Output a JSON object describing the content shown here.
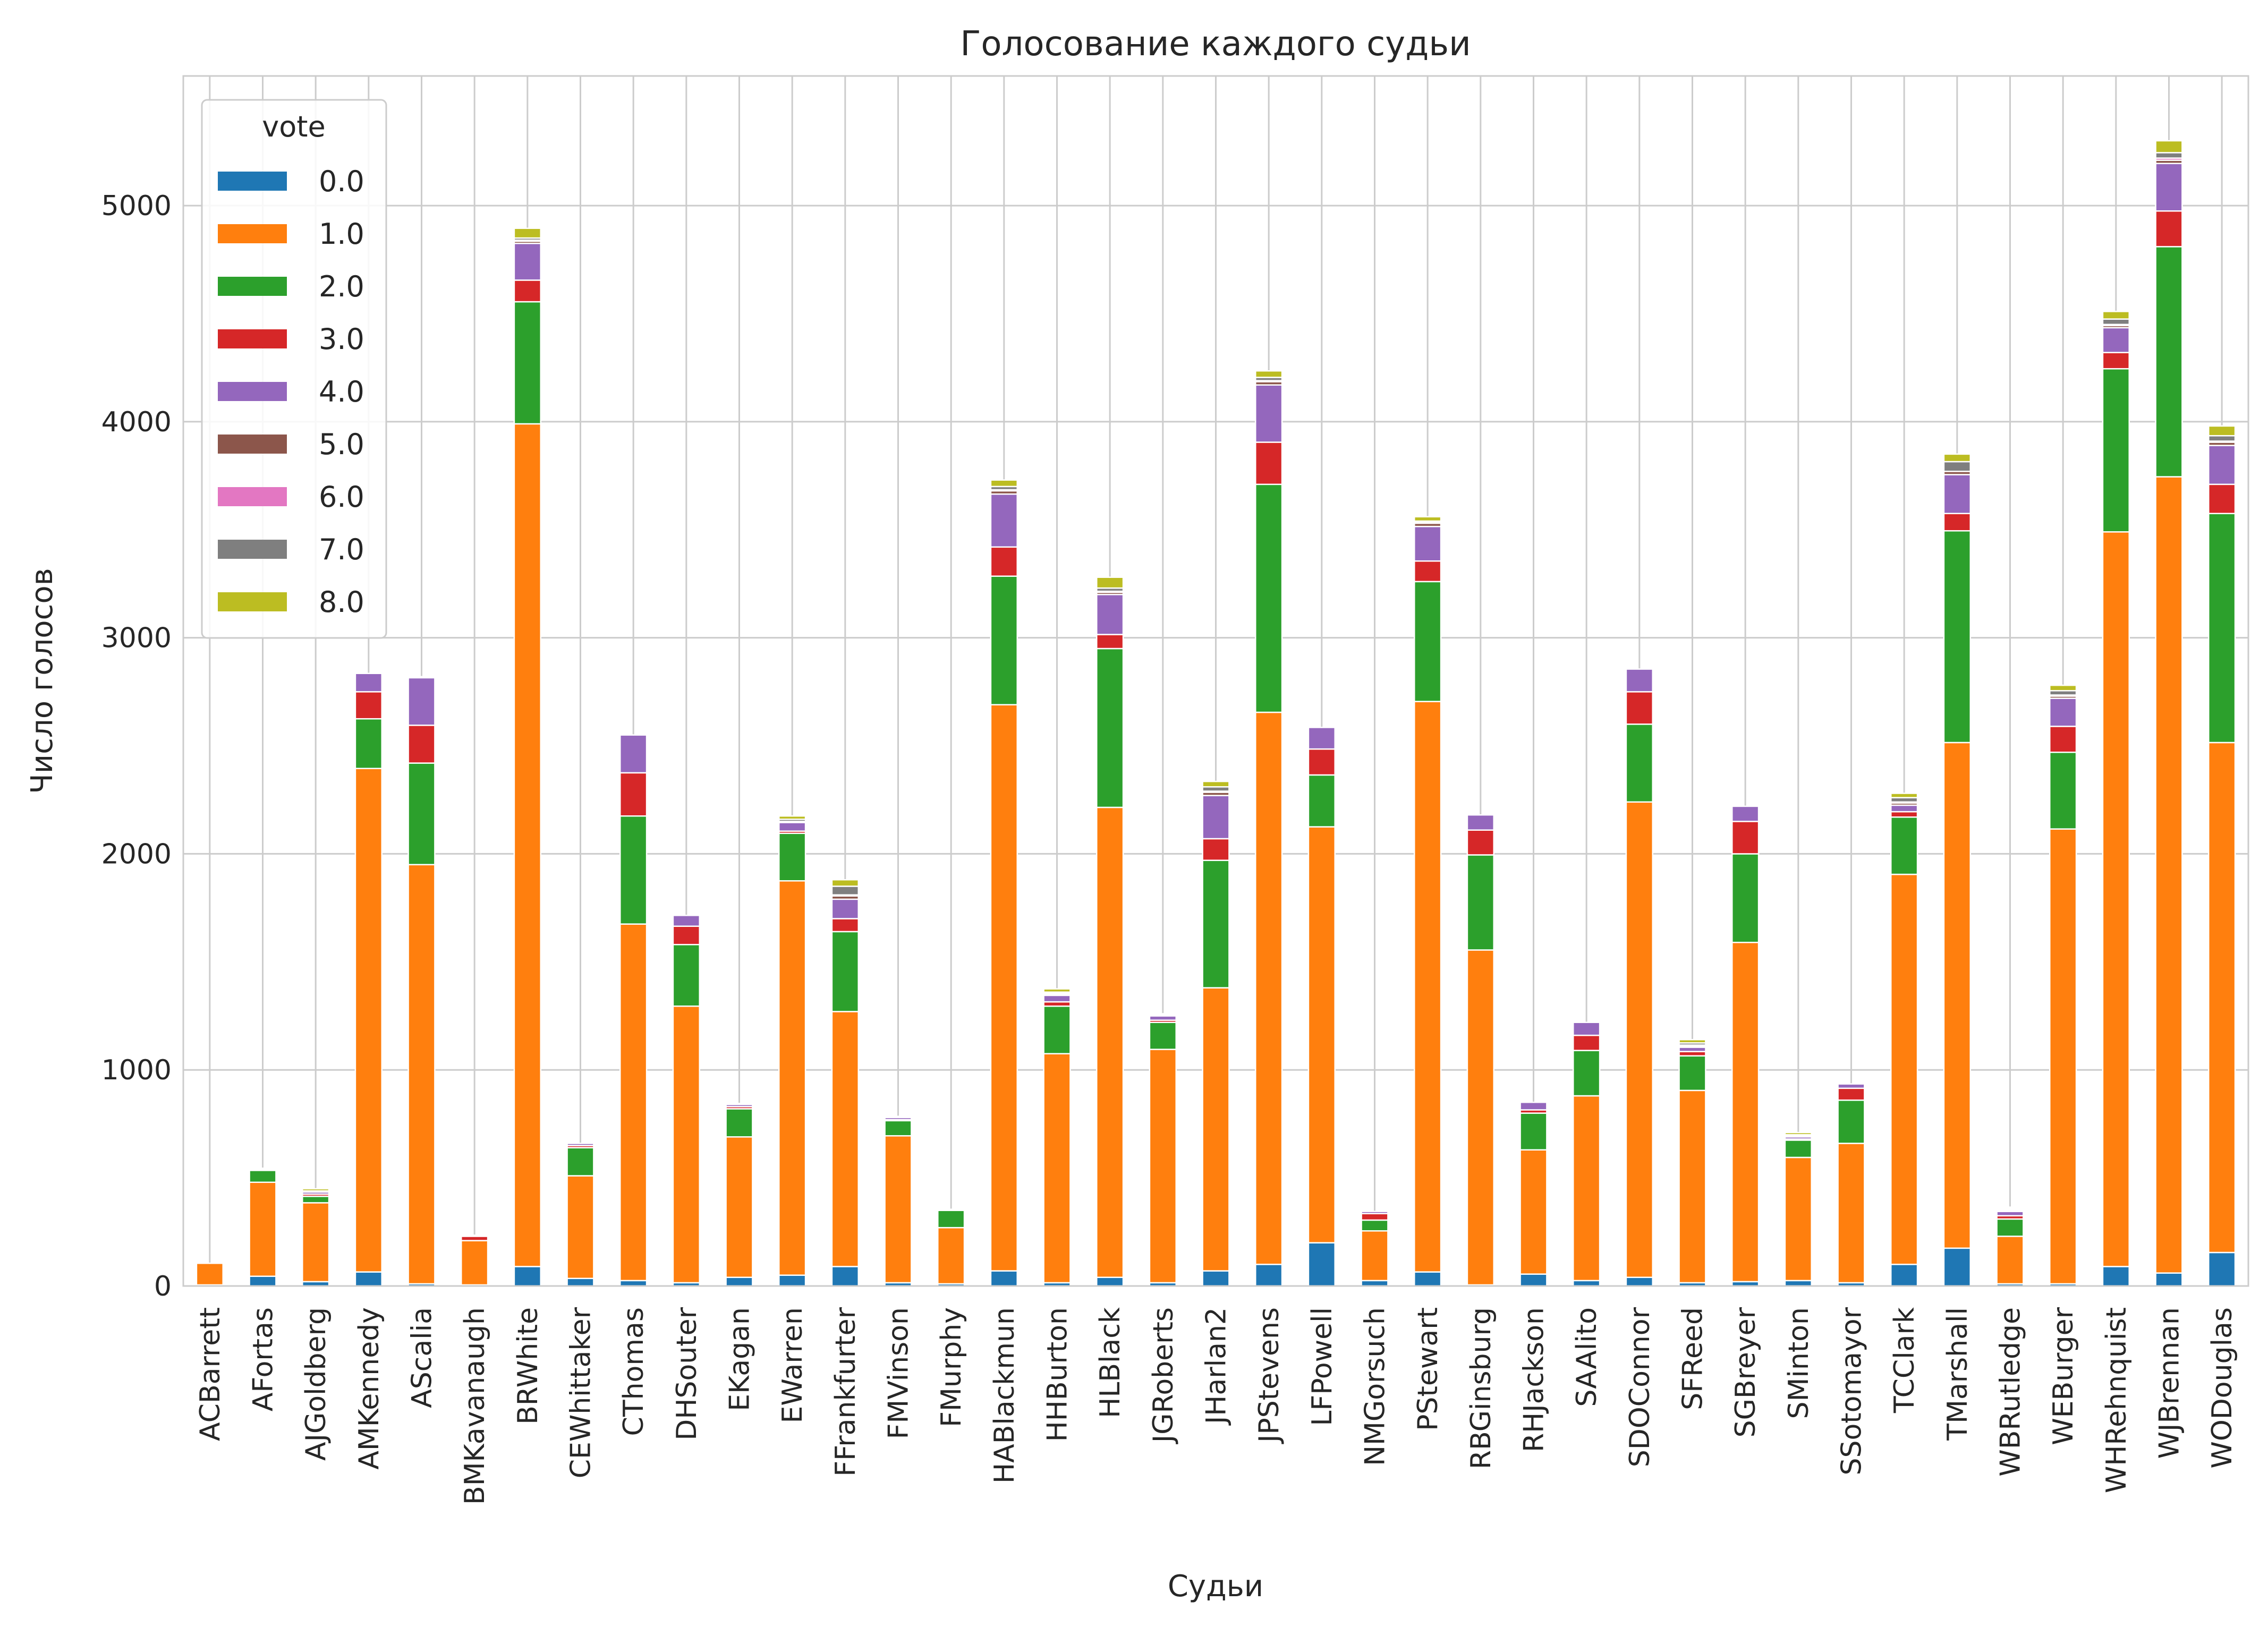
{
  "chart_data": {
    "type": "bar",
    "stacked": true,
    "title": "Голосование каждого судьи",
    "xlabel": "Судьи",
    "ylabel": "Число голосов",
    "ylim": [
      0,
      5600
    ],
    "yticks": [
      0,
      1000,
      2000,
      3000,
      4000,
      5000
    ],
    "grid": true,
    "legend": {
      "title": "vote",
      "placement": "top-left"
    },
    "categories": [
      "ACBarrett",
      "AFortas",
      "AJGoldberg",
      "AMKennedy",
      "AScalia",
      "BMKavanaugh",
      "BRWhite",
      "CEWhittaker",
      "CThomas",
      "DHSouter",
      "EKagan",
      "EWarren",
      "FFrankfurter",
      "FMVinson",
      "FMurphy",
      "HABlackmun",
      "HHBurton",
      "HLBlack",
      "JGRoberts",
      "JHarlan2",
      "JPStevens",
      "LFPowell",
      "NMGorsuch",
      "PStewart",
      "RBGinsburg",
      "RHJackson",
      "SAAlito",
      "SDOConnor",
      "SFReed",
      "SGBreyer",
      "SMinton",
      "SSotomayor",
      "TCClark",
      "TMarshall",
      "WBRutledge",
      "WEBurger",
      "WHRehnquist",
      "WJBrennan",
      "WODouglas"
    ],
    "series": [
      {
        "name": "0.0",
        "color": "#1f77b4",
        "values": [
          5,
          45,
          20,
          65,
          10,
          5,
          90,
          35,
          25,
          15,
          40,
          50,
          90,
          15,
          10,
          70,
          15,
          40,
          15,
          70,
          100,
          200,
          25,
          65,
          5,
          55,
          25,
          40,
          15,
          20,
          25,
          15,
          100,
          175,
          10,
          10,
          90,
          60,
          155
        ]
      },
      {
        "name": "1.0",
        "color": "#ff7f0e",
        "values": [
          100,
          435,
          365,
          2330,
          1940,
          205,
          3900,
          475,
          1650,
          1280,
          650,
          1825,
          1180,
          680,
          260,
          2620,
          1060,
          2175,
          1080,
          1310,
          2555,
          1925,
          230,
          2640,
          1550,
          575,
          855,
          2200,
          890,
          1570,
          570,
          645,
          1805,
          2340,
          220,
          2105,
          3400,
          3685,
          2360
        ]
      },
      {
        "name": "2.0",
        "color": "#2ca02c",
        "values": [
          0,
          55,
          30,
          230,
          470,
          0,
          565,
          130,
          500,
          285,
          130,
          220,
          370,
          70,
          80,
          595,
          220,
          735,
          125,
          590,
          1055,
          240,
          50,
          555,
          440,
          170,
          210,
          360,
          160,
          410,
          80,
          200,
          265,
          980,
          80,
          355,
          755,
          1065,
          1060
        ]
      },
      {
        "name": "3.0",
        "color": "#d62728",
        "values": [
          0,
          5,
          10,
          125,
          175,
          20,
          100,
          10,
          200,
          85,
          10,
          10,
          60,
          5,
          0,
          135,
          20,
          65,
          10,
          100,
          195,
          120,
          30,
          95,
          115,
          15,
          70,
          150,
          20,
          150,
          5,
          55,
          25,
          80,
          15,
          120,
          75,
          165,
          135
        ]
      },
      {
        "name": "4.0",
        "color": "#9467bd",
        "values": [
          0,
          5,
          10,
          85,
          220,
          5,
          170,
          10,
          175,
          50,
          10,
          40,
          90,
          10,
          5,
          245,
          30,
          185,
          20,
          200,
          265,
          100,
          10,
          160,
          70,
          35,
          60,
          105,
          20,
          70,
          10,
          20,
          30,
          180,
          20,
          130,
          115,
          220,
          180
        ]
      },
      {
        "name": "5.0",
        "color": "#8c564b",
        "values": [
          0,
          0,
          0,
          0,
          5,
          0,
          10,
          0,
          0,
          0,
          0,
          5,
          15,
          0,
          0,
          15,
          5,
          10,
          5,
          15,
          15,
          0,
          0,
          15,
          0,
          0,
          0,
          0,
          5,
          0,
          0,
          0,
          10,
          15,
          5,
          10,
          10,
          15,
          15
        ]
      },
      {
        "name": "6.0",
        "color": "#e377c2",
        "values": [
          0,
          0,
          5,
          0,
          0,
          0,
          5,
          0,
          0,
          0,
          0,
          0,
          5,
          0,
          0,
          5,
          5,
          5,
          5,
          5,
          5,
          0,
          0,
          5,
          0,
          0,
          0,
          0,
          5,
          0,
          5,
          0,
          5,
          0,
          5,
          5,
          5,
          10,
          5
        ]
      },
      {
        "name": "7.0",
        "color": "#7f7f7f",
        "values": [
          0,
          0,
          0,
          0,
          0,
          0,
          10,
          0,
          0,
          0,
          0,
          10,
          40,
          0,
          0,
          15,
          5,
          15,
          0,
          20,
          15,
          0,
          0,
          5,
          0,
          0,
          0,
          0,
          10,
          0,
          5,
          0,
          20,
          45,
          5,
          20,
          25,
          25,
          25
        ]
      },
      {
        "name": "8.0",
        "color": "#bcbd22",
        "values": [
          0,
          0,
          10,
          0,
          0,
          0,
          45,
          0,
          0,
          0,
          5,
          15,
          30,
          5,
          0,
          30,
          15,
          50,
          0,
          25,
          30,
          0,
          0,
          20,
          0,
          0,
          0,
          0,
          15,
          0,
          10,
          0,
          20,
          35,
          5,
          25,
          35,
          55,
          45
        ]
      }
    ]
  }
}
